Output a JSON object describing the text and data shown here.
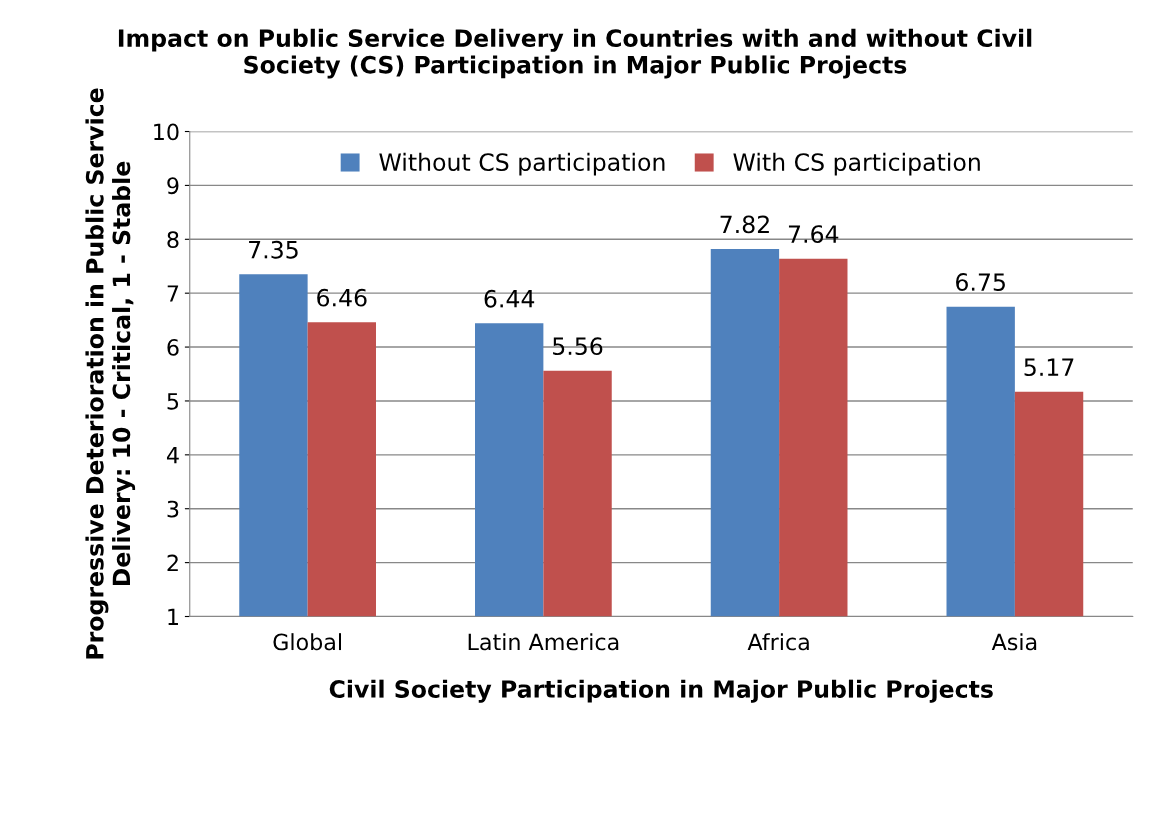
{
  "chart_data": {
    "type": "bar",
    "title": "Impact on Public Service Delivery in Countries with and without Civil\nSociety (CS) Participation in Major Public Projects",
    "xlabel": "Civil Society Participation in Major Public Projects",
    "ylabel": "Progressive Deterioration in Public Service\nDelivery: 10 - Critical, 1 - Stable",
    "categories": [
      "Global",
      "Latin America",
      "Africa",
      "Asia"
    ],
    "series": [
      {
        "name": "Without CS participation",
        "color": "#4f81bd",
        "values": [
          7.35,
          6.44,
          7.82,
          6.75
        ]
      },
      {
        "name": "With CS participation",
        "color": "#c0504d",
        "values": [
          6.46,
          5.56,
          7.64,
          5.17
        ]
      }
    ],
    "ylim": [
      1,
      10
    ],
    "yticks": [
      1,
      2,
      3,
      4,
      5,
      6,
      7,
      8,
      9,
      10
    ],
    "grid": "y",
    "legend": "top",
    "data_labels": true
  }
}
